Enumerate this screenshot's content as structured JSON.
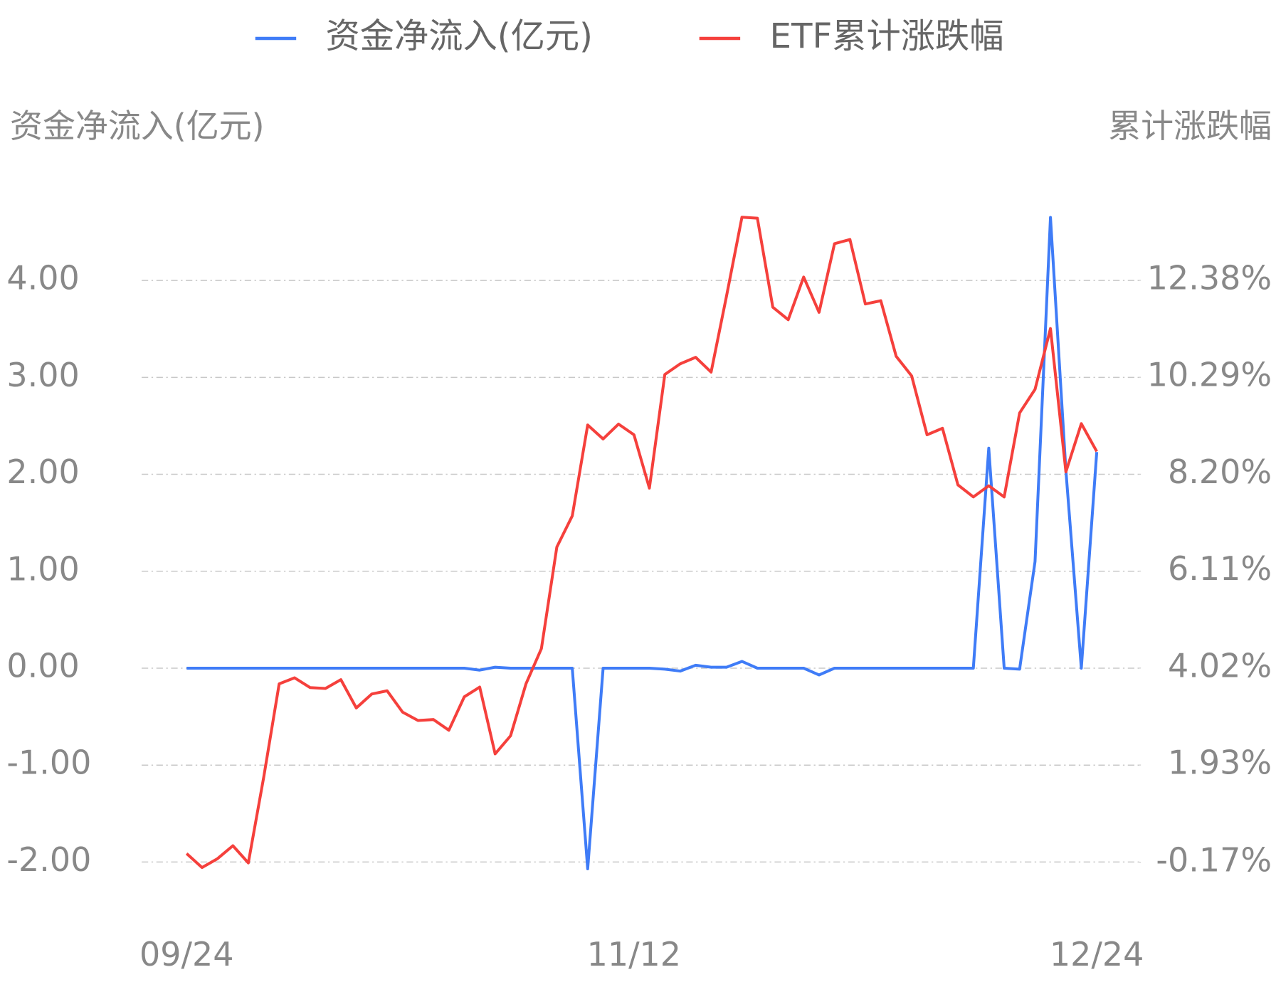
{
  "chart_data": {
    "type": "line",
    "y_label": "资金净流入(亿元)",
    "y2_label": "累计涨跌幅",
    "categories": [
      "09/24",
      null,
      null,
      null,
      null,
      null,
      null,
      null,
      null,
      null,
      null,
      null,
      null,
      null,
      null,
      null,
      null,
      null,
      null,
      null,
      null,
      null,
      null,
      null,
      null,
      null,
      null,
      null,
      null,
      "11/12",
      null,
      null,
      null,
      null,
      null,
      null,
      null,
      null,
      null,
      null,
      null,
      null,
      null,
      null,
      null,
      null,
      null,
      null,
      null,
      null,
      null,
      null,
      null,
      null,
      null,
      null,
      null,
      null,
      null,
      "12/24"
    ],
    "series": [
      {
        "name": "资金净流入(亿元)",
        "color": "#3f7cf7",
        "axis": "y",
        "values": [
          0,
          0,
          0,
          0,
          0,
          0,
          0,
          0,
          0,
          0,
          0,
          0,
          0,
          0,
          0,
          0,
          0,
          0,
          0,
          -0.02,
          0.01,
          0,
          0,
          0,
          0,
          0,
          -2.07,
          0,
          0,
          0,
          0,
          -0.01,
          -0.03,
          0.03,
          0.01,
          0.01,
          0.07,
          0,
          0,
          0,
          0,
          -0.07,
          0,
          0,
          0,
          0,
          0,
          0,
          0,
          0,
          0,
          0,
          2.27,
          0,
          -0.01,
          1.1,
          4.65,
          2.04,
          0,
          2.23
        ]
      },
      {
        "name": "ETF累计涨跌幅",
        "color": "#f5403c",
        "axis": "y2",
        "values": [
          0.02,
          -0.28,
          -0.09,
          0.19,
          -0.18,
          1.67,
          3.68,
          3.81,
          3.6,
          3.58,
          3.77,
          3.16,
          3.46,
          3.53,
          3.07,
          2.89,
          2.91,
          2.68,
          3.4,
          3.61,
          2.17,
          2.56,
          3.68,
          4.44,
          6.63,
          7.3,
          9.26,
          8.96,
          9.28,
          9.05,
          7.9,
          10.35,
          10.58,
          10.72,
          10.4,
          12.04,
          13.74,
          13.72,
          11.8,
          11.53,
          12.45,
          11.69,
          13.17,
          13.26,
          11.87,
          11.94,
          10.74,
          10.32,
          9.05,
          9.19,
          7.97,
          7.71,
          7.95,
          7.71,
          9.52,
          10.03,
          11.34,
          8.25,
          9.29,
          8.69
        ]
      }
    ],
    "ylim": [
      -2.2,
      4.7
    ],
    "yticks": [
      {
        "value": -2,
        "label": "-2.00"
      },
      {
        "value": -1,
        "label": "-1.00"
      },
      {
        "value": 0,
        "label": "0.00"
      },
      {
        "value": 1,
        "label": "1.00"
      },
      {
        "value": 2,
        "label": "2.00"
      },
      {
        "value": 3,
        "label": "3.00"
      },
      {
        "value": 4,
        "label": "4.00"
      }
    ],
    "y2lim": [
      -0.58,
      13.84
    ],
    "y2ticks": [
      {
        "value": -0.17,
        "label": "-0.17%"
      },
      {
        "value": 1.93,
        "label": "1.93%"
      },
      {
        "value": 4.02,
        "label": "4.02%"
      },
      {
        "value": 6.11,
        "label": "6.11%"
      },
      {
        "value": 8.2,
        "label": "8.20%"
      },
      {
        "value": 10.29,
        "label": "10.29%"
      },
      {
        "value": 12.38,
        "label": "12.38%"
      }
    ],
    "grid": true,
    "legend": "top"
  }
}
